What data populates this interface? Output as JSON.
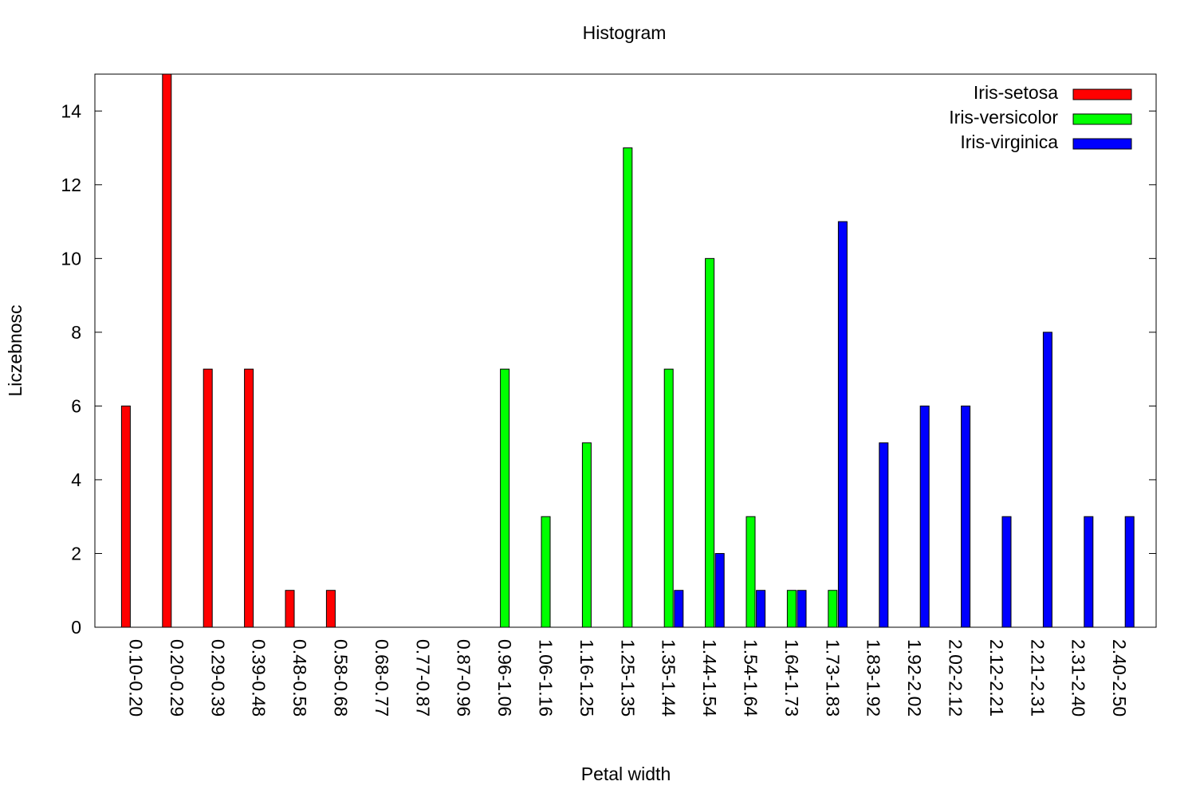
{
  "chart_data": {
    "type": "bar",
    "title": "Histogram",
    "xlabel": "Petal width",
    "ylabel": "Liczebnosc",
    "ylim": [
      0,
      15
    ],
    "yticks": [
      0,
      2,
      4,
      6,
      8,
      10,
      12,
      14
    ],
    "grid": false,
    "legend_position": "top-right",
    "categories": [
      "0.10-0.20",
      "0.20-0.29",
      "0.29-0.39",
      "0.39-0.48",
      "0.48-0.58",
      "0.58-0.68",
      "0.68-0.77",
      "0.77-0.87",
      "0.87-0.96",
      "0.96-1.06",
      "1.06-1.16",
      "1.16-1.25",
      "1.25-1.35",
      "1.35-1.44",
      "1.44-1.54",
      "1.54-1.64",
      "1.64-1.73",
      "1.73-1.83",
      "1.83-1.92",
      "1.92-2.02",
      "2.02-2.12",
      "2.12-2.21",
      "2.21-2.31",
      "2.31-2.40",
      "2.40-2.50"
    ],
    "series": [
      {
        "name": "Iris-setosa",
        "color": "#ff0000",
        "values": [
          6,
          15,
          7,
          7,
          1,
          1,
          0,
          0,
          0,
          0,
          0,
          0,
          0,
          0,
          0,
          0,
          0,
          0,
          0,
          0,
          0,
          0,
          0,
          0,
          0
        ]
      },
      {
        "name": "Iris-versicolor",
        "color": "#00ff00",
        "values": [
          0,
          0,
          0,
          0,
          0,
          0,
          0,
          0,
          0,
          7,
          3,
          5,
          13,
          7,
          10,
          3,
          1,
          1,
          0,
          0,
          0,
          0,
          0,
          0,
          0
        ]
      },
      {
        "name": "Iris-virginica",
        "color": "#0000ff",
        "values": [
          0,
          0,
          0,
          0,
          0,
          0,
          0,
          0,
          0,
          0,
          0,
          0,
          0,
          1,
          2,
          1,
          1,
          11,
          5,
          6,
          6,
          3,
          8,
          3,
          3
        ]
      }
    ]
  }
}
